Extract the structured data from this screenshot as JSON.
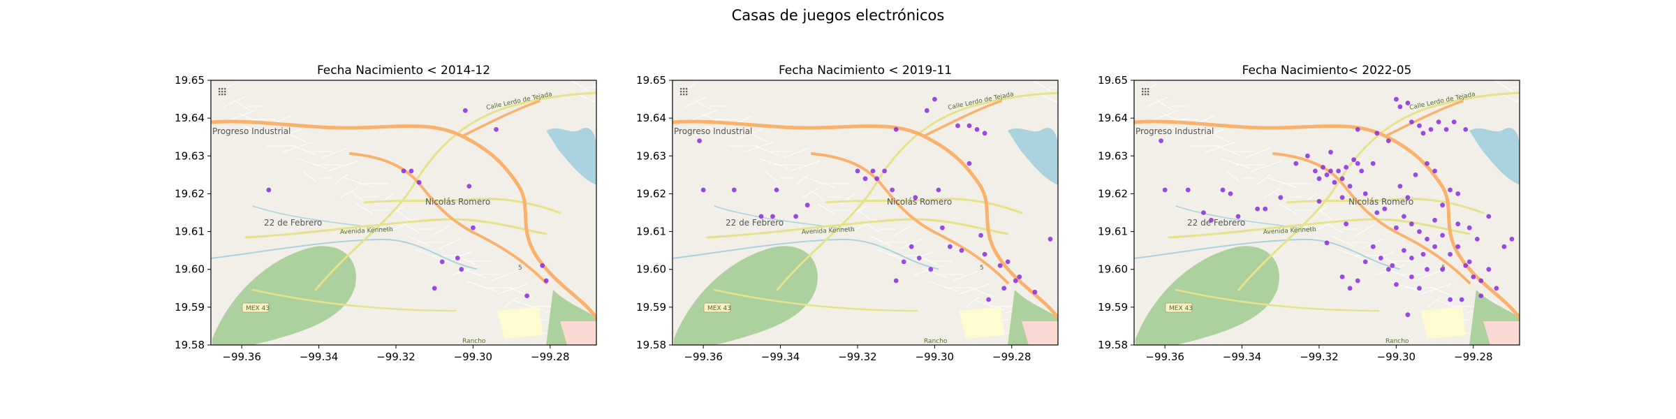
{
  "figure": {
    "title": "Casas de juegos electrónicos"
  },
  "map_labels": {
    "center": "Nicolás Romero",
    "neighborhood_left": "Progreso Industrial",
    "neighborhood_sw": "22 de Febrero",
    "road_main": "Avenida Kenneth",
    "road_ne": "Calle Lerdo de Tejada",
    "road_mex": "MEX 43",
    "road_s": "5",
    "place_s": "Rancho"
  },
  "colors": {
    "marker": "#8a2be2",
    "map_background": "#f2efe9",
    "forest": "#add19e",
    "water": "#aad3df",
    "highway": "#f9b26e",
    "primary_road": "#f7fabf"
  },
  "chart_data": [
    {
      "type": "scatter",
      "title": "Fecha Nacimiento < 2014-12",
      "xlim": [
        -99.368,
        -99.268
      ],
      "ylim": [
        19.58,
        19.65
      ],
      "xticks": [
        -99.36,
        -99.34,
        -99.32,
        -99.3,
        -99.28
      ],
      "yticks": [
        19.58,
        19.59,
        19.6,
        19.61,
        19.62,
        19.63,
        19.64,
        19.65
      ],
      "xtick_labels": [
        "−99.36",
        "−99.34",
        "−99.32",
        "−99.30",
        "−99.28"
      ],
      "ytick_labels": [
        "19.58",
        "19.59",
        "19.60",
        "19.61",
        "19.62",
        "19.63",
        "19.64",
        "19.65"
      ],
      "points": [
        [
          -99.353,
          19.621
        ],
        [
          -99.318,
          19.626
        ],
        [
          -99.316,
          19.626
        ],
        [
          -99.314,
          19.623
        ],
        [
          -99.302,
          19.642
        ],
        [
          -99.294,
          19.637
        ],
        [
          -99.301,
          19.622
        ],
        [
          -99.3,
          19.611
        ],
        [
          -99.308,
          19.602
        ],
        [
          -99.304,
          19.603
        ],
        [
          -99.303,
          19.6
        ],
        [
          -99.31,
          19.595
        ],
        [
          -99.282,
          19.601
        ],
        [
          -99.281,
          19.597
        ],
        [
          -99.286,
          19.593
        ]
      ]
    },
    {
      "type": "scatter",
      "title": "Fecha Nacimiento < 2019-11",
      "xlim": [
        -99.368,
        -99.268
      ],
      "ylim": [
        19.58,
        19.65
      ],
      "xticks": [
        -99.36,
        -99.34,
        -99.32,
        -99.3,
        -99.28
      ],
      "yticks": [
        19.58,
        19.59,
        19.6,
        19.61,
        19.62,
        19.63,
        19.64,
        19.65
      ],
      "xtick_labels": [
        "−99.36",
        "−99.34",
        "−99.32",
        "−99.30",
        "−99.28"
      ],
      "ytick_labels": [
        "19.58",
        "19.59",
        "19.60",
        "19.61",
        "19.62",
        "19.63",
        "19.64",
        "19.65"
      ],
      "points": [
        [
          -99.361,
          19.634
        ],
        [
          -99.36,
          19.621
        ],
        [
          -99.352,
          19.621
        ],
        [
          -99.345,
          19.614
        ],
        [
          -99.342,
          19.614
        ],
        [
          -99.341,
          19.621
        ],
        [
          -99.336,
          19.614
        ],
        [
          -99.333,
          19.617
        ],
        [
          -99.32,
          19.626
        ],
        [
          -99.318,
          19.624
        ],
        [
          -99.316,
          19.626
        ],
        [
          -99.315,
          19.624
        ],
        [
          -99.313,
          19.626
        ],
        [
          -99.311,
          19.621
        ],
        [
          -99.31,
          19.637
        ],
        [
          -99.302,
          19.642
        ],
        [
          -99.3,
          19.645
        ],
        [
          -99.294,
          19.638
        ],
        [
          -99.291,
          19.638
        ],
        [
          -99.289,
          19.637
        ],
        [
          -99.287,
          19.636
        ],
        [
          -99.299,
          19.621
        ],
        [
          -99.298,
          19.611
        ],
        [
          -99.306,
          19.606
        ],
        [
          -99.308,
          19.602
        ],
        [
          -99.304,
          19.603
        ],
        [
          -99.301,
          19.6
        ],
        [
          -99.31,
          19.597
        ],
        [
          -99.296,
          19.606
        ],
        [
          -99.293,
          19.605
        ],
        [
          -99.288,
          19.609
        ],
        [
          -99.287,
          19.604
        ],
        [
          -99.283,
          19.601
        ],
        [
          -99.281,
          19.602
        ],
        [
          -99.279,
          19.597
        ],
        [
          -99.282,
          19.595
        ],
        [
          -99.286,
          19.592
        ],
        [
          -99.278,
          19.598
        ],
        [
          -99.27,
          19.608
        ],
        [
          -99.274,
          19.594
        ],
        [
          -99.305,
          19.619
        ],
        [
          -99.291,
          19.628
        ]
      ]
    },
    {
      "type": "scatter",
      "title": "Fecha Nacimiento< 2022-05",
      "xlim": [
        -99.368,
        -99.268
      ],
      "ylim": [
        19.58,
        19.65
      ],
      "xticks": [
        -99.36,
        -99.34,
        -99.32,
        -99.3,
        -99.28
      ],
      "yticks": [
        19.58,
        19.59,
        19.6,
        19.61,
        19.62,
        19.63,
        19.64,
        19.65
      ],
      "xtick_labels": [
        "−99.36",
        "−99.34",
        "−99.32",
        "−99.30",
        "−99.28"
      ],
      "ytick_labels": [
        "19.58",
        "19.59",
        "19.60",
        "19.61",
        "19.62",
        "19.63",
        "19.64",
        "19.65"
      ],
      "points": [
        [
          -99.361,
          19.634
        ],
        [
          -99.36,
          19.621
        ],
        [
          -99.354,
          19.621
        ],
        [
          -99.35,
          19.615
        ],
        [
          -99.348,
          19.613
        ],
        [
          -99.345,
          19.621
        ],
        [
          -99.343,
          19.62
        ],
        [
          -99.341,
          19.614
        ],
        [
          -99.336,
          19.616
        ],
        [
          -99.334,
          19.616
        ],
        [
          -99.33,
          19.619
        ],
        [
          -99.326,
          19.628
        ],
        [
          -99.323,
          19.63
        ],
        [
          -99.321,
          19.626
        ],
        [
          -99.32,
          19.624
        ],
        [
          -99.319,
          19.627
        ],
        [
          -99.318,
          19.625
        ],
        [
          -99.317,
          19.626
        ],
        [
          -99.316,
          19.623
        ],
        [
          -99.315,
          19.626
        ],
        [
          -99.314,
          19.624
        ],
        [
          -99.313,
          19.627
        ],
        [
          -99.312,
          19.622
        ],
        [
          -99.311,
          19.629
        ],
        [
          -99.31,
          19.628
        ],
        [
          -99.309,
          19.626
        ],
        [
          -99.308,
          19.62
        ],
        [
          -99.306,
          19.628
        ],
        [
          -99.317,
          19.631
        ],
        [
          -99.32,
          19.618
        ],
        [
          -99.314,
          19.619
        ],
        [
          -99.31,
          19.637
        ],
        [
          -99.305,
          19.636
        ],
        [
          -99.302,
          19.634
        ],
        [
          -99.3,
          19.645
        ],
        [
          -99.299,
          19.643
        ],
        [
          -99.297,
          19.644
        ],
        [
          -99.296,
          19.639
        ],
        [
          -99.294,
          19.638
        ],
        [
          -99.293,
          19.636
        ],
        [
          -99.291,
          19.637
        ],
        [
          -99.289,
          19.639
        ],
        [
          -99.287,
          19.637
        ],
        [
          -99.285,
          19.639
        ],
        [
          -99.282,
          19.637
        ],
        [
          -99.299,
          19.622
        ],
        [
          -99.297,
          19.619
        ],
        [
          -99.295,
          19.625
        ],
        [
          -99.292,
          19.628
        ],
        [
          -99.29,
          19.626
        ],
        [
          -99.288,
          19.617
        ],
        [
          -99.286,
          19.621
        ],
        [
          -99.284,
          19.62
        ],
        [
          -99.3,
          19.611
        ],
        [
          -99.298,
          19.614
        ],
        [
          -99.296,
          19.612
        ],
        [
          -99.294,
          19.61
        ],
        [
          -99.292,
          19.608
        ],
        [
          -99.29,
          19.606
        ],
        [
          -99.288,
          19.609
        ],
        [
          -99.286,
          19.604
        ],
        [
          -99.284,
          19.606
        ],
        [
          -99.282,
          19.601
        ],
        [
          -99.281,
          19.602
        ],
        [
          -99.28,
          19.598
        ],
        [
          -99.278,
          19.597
        ],
        [
          -99.276,
          19.6
        ],
        [
          -99.274,
          19.595
        ],
        [
          -99.272,
          19.606
        ],
        [
          -99.27,
          19.608
        ],
        [
          -99.306,
          19.606
        ],
        [
          -99.308,
          19.602
        ],
        [
          -99.304,
          19.603
        ],
        [
          -99.302,
          19.6
        ],
        [
          -99.301,
          19.601
        ],
        [
          -99.31,
          19.597
        ],
        [
          -99.312,
          19.595
        ],
        [
          -99.314,
          19.598
        ],
        [
          -99.3,
          19.596
        ],
        [
          -99.296,
          19.598
        ],
        [
          -99.294,
          19.595
        ],
        [
          -99.286,
          19.592
        ],
        [
          -99.283,
          19.592
        ],
        [
          -99.278,
          19.593
        ],
        [
          -99.281,
          19.611
        ],
        [
          -99.279,
          19.608
        ],
        [
          -99.284,
          19.612
        ],
        [
          -99.276,
          19.614
        ],
        [
          -99.298,
          19.605
        ],
        [
          -99.296,
          19.603
        ],
        [
          -99.293,
          19.604
        ],
        [
          -99.313,
          19.612
        ],
        [
          -99.318,
          19.607
        ],
        [
          -99.305,
          19.615
        ],
        [
          -99.303,
          19.616
        ],
        [
          -99.29,
          19.613
        ],
        [
          -99.288,
          19.6
        ],
        [
          -99.292,
          19.6
        ],
        [
          -99.297,
          19.588
        ]
      ]
    }
  ]
}
